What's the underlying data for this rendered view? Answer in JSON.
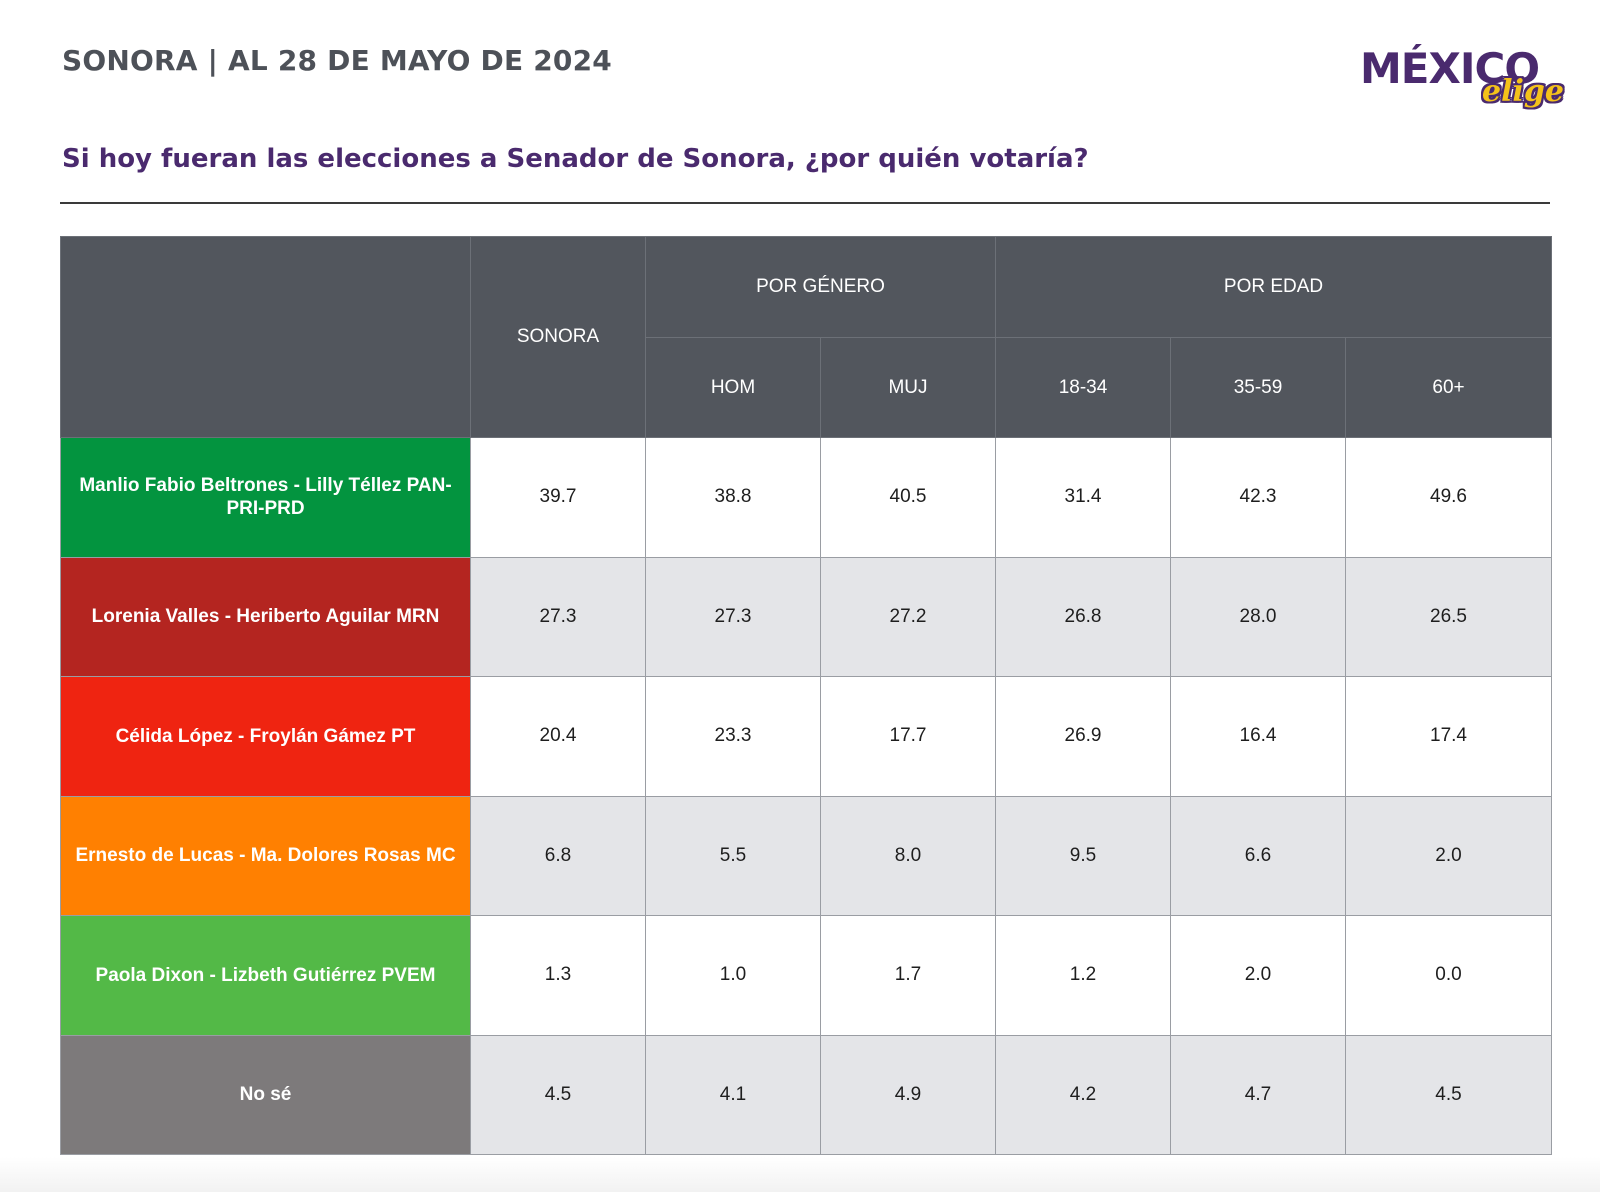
{
  "header": {
    "title": "SONORA | AL 28 DE MAYO DE 2024"
  },
  "logo": {
    "main": "MÉXICO",
    "sub": "elige",
    "colors": {
      "main": "#4a2a6e",
      "accent": "#f4c21a"
    }
  },
  "question": "Si hoy fueran las elecciones a Senador de Sonora, ¿por quién votaría?",
  "chart_data": {
    "type": "table",
    "columns": {
      "total": "SONORA",
      "groups": [
        {
          "label": "POR GÉNERO",
          "subs": [
            "HOM",
            "MUJ"
          ]
        },
        {
          "label": "POR EDAD",
          "subs": [
            "18-34",
            "35-59",
            "60+"
          ]
        }
      ]
    },
    "rows": [
      {
        "label": "Manlio Fabio Beltrones - Lilly Téllez PAN-PRI-PRD",
        "color": "#03943f",
        "values": [
          "39.7",
          "38.8",
          "40.5",
          "31.4",
          "42.3",
          "49.6"
        ]
      },
      {
        "label": "Lorenia Valles - Heriberto Aguilar MRN",
        "color": "#b42520",
        "values": [
          "27.3",
          "27.3",
          "27.2",
          "26.8",
          "28.0",
          "26.5"
        ]
      },
      {
        "label": "Célida López - Froylán Gámez PT",
        "color": "#ef2411",
        "values": [
          "20.4",
          "23.3",
          "17.7",
          "26.9",
          "16.4",
          "17.4"
        ]
      },
      {
        "label": "Ernesto de Lucas - Ma. Dolores Rosas MC",
        "color": "#ff8001",
        "values": [
          "6.8",
          "5.5",
          "8.0",
          "9.5",
          "6.6",
          "2.0"
        ]
      },
      {
        "label": "Paola Dixon - Lizbeth Gutiérrez PVEM",
        "color": "#53b947",
        "values": [
          "1.3",
          "1.0",
          "1.7",
          "1.2",
          "2.0",
          "0.0"
        ]
      },
      {
        "label": "No sé",
        "color": "#7d7a7b",
        "values": [
          "4.5",
          "4.1",
          "4.9",
          "4.2",
          "4.7",
          "4.5"
        ]
      }
    ]
  }
}
